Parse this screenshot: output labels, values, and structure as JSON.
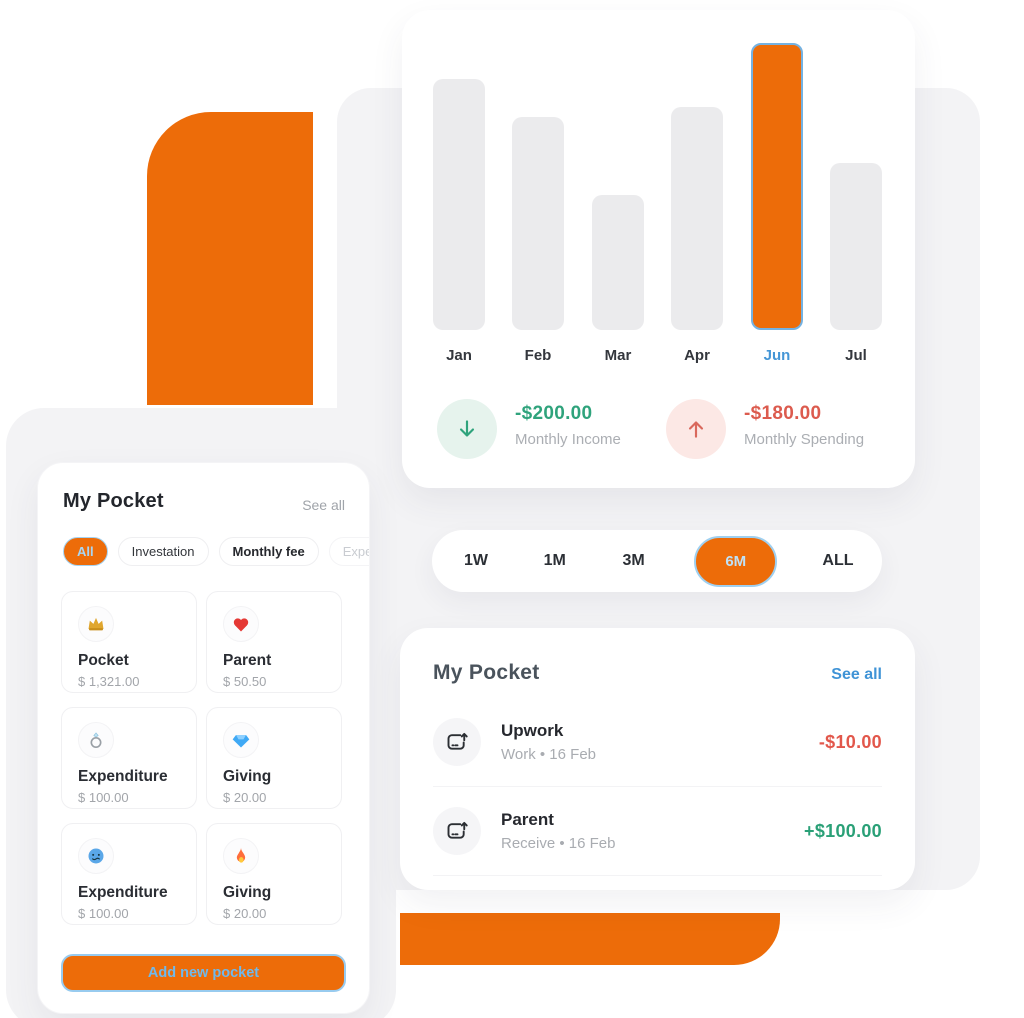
{
  "colors": {
    "orange": "#ED6C09",
    "blue": "#4596D6",
    "light_blue": "#A9D6F4",
    "green": "#2AA077",
    "red": "#E2574B",
    "bar_gray": "#EBEBED"
  },
  "chart_card": {
    "chart_data": {
      "type": "bar",
      "categories": [
        "Jan",
        "Feb",
        "Mar",
        "Apr",
        "Jun",
        "Jul"
      ],
      "values": [
        251,
        213,
        135,
        223,
        287,
        167
      ],
      "values_unit": "relative-height-px",
      "highlighted_category": "Jun",
      "title": "",
      "xlabel": "",
      "ylabel": "",
      "axis": "none",
      "grid": false,
      "legend": false
    },
    "income": {
      "amount": "-$200.00",
      "label": "Monthly Income",
      "icon": "arrow-down-icon"
    },
    "spending": {
      "amount": "-$180.00",
      "label": "Monthly Spending",
      "icon": "arrow-up-icon"
    }
  },
  "period_selector": {
    "options": [
      {
        "label": "1W",
        "selected": false
      },
      {
        "label": "1M",
        "selected": false
      },
      {
        "label": "3M",
        "selected": false
      },
      {
        "label": "6M",
        "selected": true
      },
      {
        "label": "ALL",
        "selected": false
      }
    ]
  },
  "transactions_card": {
    "title": "My Pocket",
    "see_all": "See all",
    "items": [
      {
        "icon": "card-transfer-icon",
        "name": "Upwork",
        "meta": "Work • 16 Feb",
        "amount": "-$10.00",
        "direction": "negative"
      },
      {
        "icon": "card-transfer-icon",
        "name": "Parent",
        "meta": "Receive • 16 Feb",
        "amount": "+$100.00",
        "direction": "positive"
      }
    ]
  },
  "pockets_card": {
    "title": "My Pocket",
    "see_all": "See all",
    "filters": [
      {
        "label": "All",
        "selected": true
      },
      {
        "label": "Investation",
        "selected": false
      },
      {
        "label": "Monthly fee",
        "selected": false,
        "bold": true
      },
      {
        "label": "Expenditure",
        "selected": false,
        "faded": true
      }
    ],
    "pockets": [
      {
        "icon": "crown-icon",
        "name": "Pocket",
        "amount": "$ 1,321.00"
      },
      {
        "icon": "heart-icon",
        "name": "Parent",
        "amount": "$ 50.50"
      },
      {
        "icon": "ring-icon",
        "name": "Expenditure",
        "amount": "$ 100.00"
      },
      {
        "icon": "diamond-icon",
        "name": "Giving",
        "amount": "$ 20.00"
      },
      {
        "icon": "cold-face-icon",
        "name": "Expenditure",
        "amount": "$ 100.00"
      },
      {
        "icon": "fire-icon",
        "name": "Giving",
        "amount": "$ 20.00"
      }
    ],
    "add_button": "Add new pocket"
  }
}
